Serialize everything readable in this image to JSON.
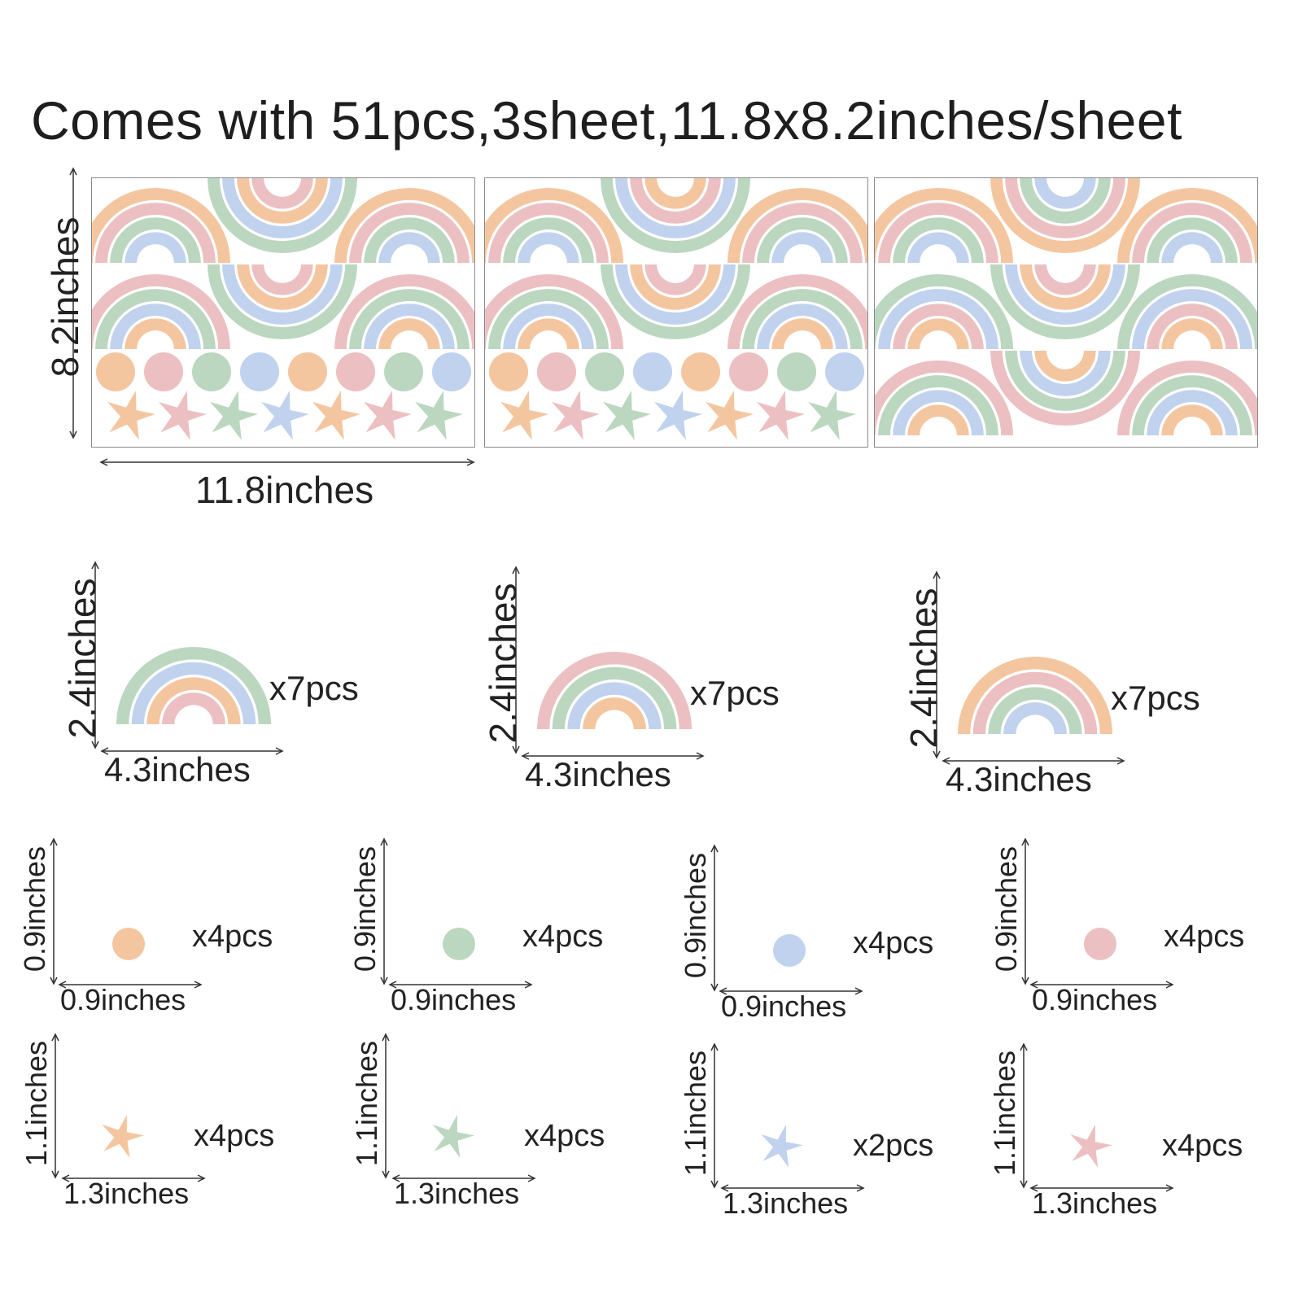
{
  "title": "Comes with 51pcs,3sheet,11.8x8.2inches/sheet",
  "colors": {
    "orange": "#f4c6a0",
    "pink": "#ecc0c2",
    "green": "#bcd7c0",
    "blue": "#c0d2ee"
  },
  "sheet_dims": {
    "height_label": "8.2inches",
    "width_label": "11.8inches"
  },
  "rainbows": [
    {
      "height_label": "2.4inches",
      "width_label": "4.3inches",
      "qty": "x7pcs",
      "bands": [
        "green",
        "blue",
        "orange",
        "pink"
      ]
    },
    {
      "height_label": "2.4inches",
      "width_label": "4.3inches",
      "qty": "x7pcs",
      "bands": [
        "pink",
        "green",
        "blue",
        "orange"
      ]
    },
    {
      "height_label": "2.4inches",
      "width_label": "4.3inches",
      "qty": "x7pcs",
      "bands": [
        "orange",
        "pink",
        "green",
        "blue"
      ]
    }
  ],
  "circles": [
    {
      "height_label": "0.9inches",
      "width_label": "0.9inches",
      "qty": "x4pcs",
      "color": "orange"
    },
    {
      "height_label": "0.9inches",
      "width_label": "0.9inches",
      "qty": "x4pcs",
      "color": "green"
    },
    {
      "height_label": "0.9inches",
      "width_label": "0.9inches",
      "qty": "x4pcs",
      "color": "blue"
    },
    {
      "height_label": "0.9inches",
      "width_label": "0.9inches",
      "qty": "x4pcs",
      "color": "pink"
    }
  ],
  "stars": [
    {
      "height_label": "1.1inches",
      "width_label": "1.3inches",
      "qty": "x4pcs",
      "color": "orange"
    },
    {
      "height_label": "1.1inches",
      "width_label": "1.3inches",
      "qty": "x4pcs",
      "color": "green"
    },
    {
      "height_label": "1.1inches",
      "width_label": "1.3inches",
      "qty": "x2pcs",
      "color": "blue"
    },
    {
      "height_label": "1.1inches",
      "width_label": "1.3inches",
      "qty": "x4pcs",
      "color": "pink"
    }
  ]
}
